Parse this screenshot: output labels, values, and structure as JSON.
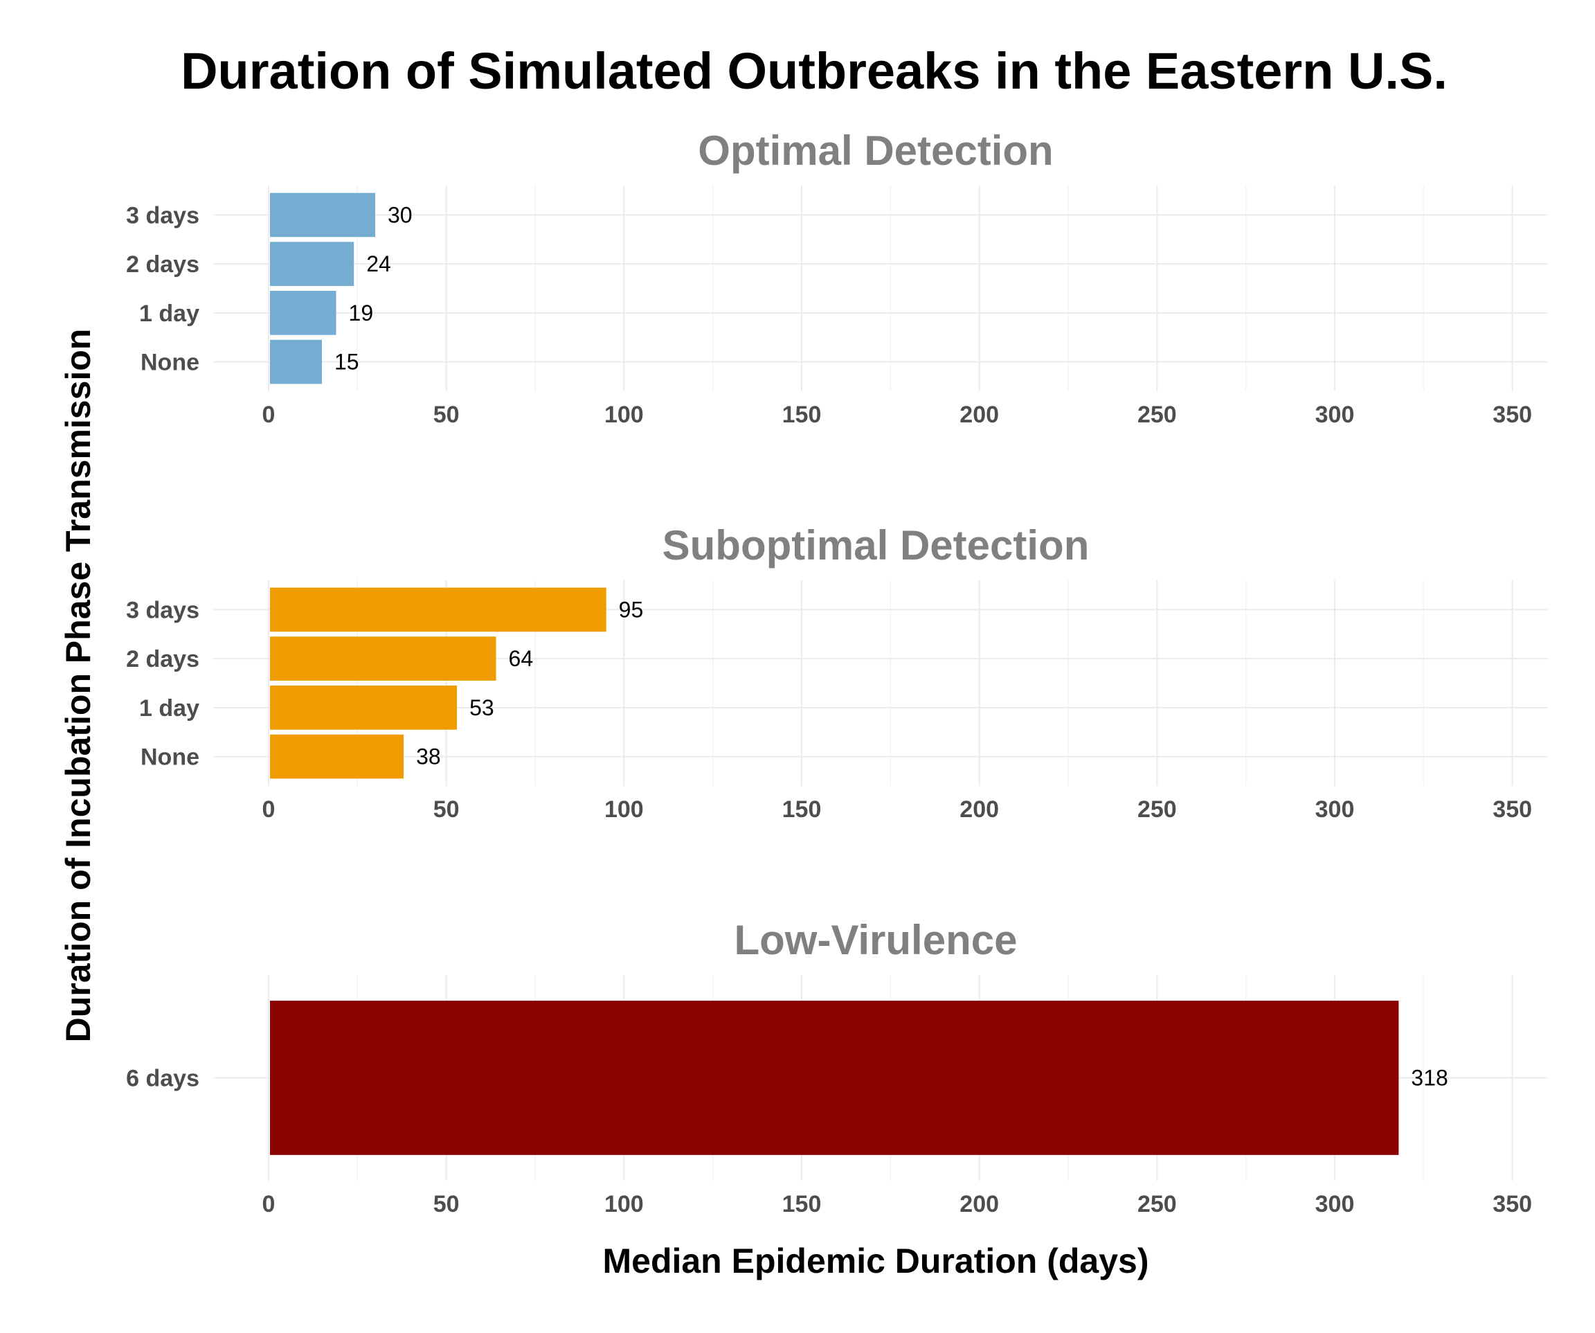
{
  "chart_data": {
    "type": "bar",
    "orientation": "horizontal",
    "title": "Duration of Simulated Outbreaks in the Eastern U.S.",
    "xlabel": "Median Epidemic Duration (days)",
    "ylabel": "Duration of Incubation Phase Transmission",
    "xlim": [
      0,
      360
    ],
    "x_ticks": [
      0,
      50,
      100,
      150,
      200,
      250,
      300,
      350
    ],
    "grid": true,
    "panels": [
      {
        "title": "Optimal Detection",
        "color": "#74add1",
        "categories": [
          "None",
          "1 day",
          "2 days",
          "3 days"
        ],
        "values": [
          15,
          19,
          24,
          30
        ]
      },
      {
        "title": "Suboptimal Detection",
        "color": "#f09b00",
        "categories": [
          "None",
          "1 day",
          "2 days",
          "3 days"
        ],
        "values": [
          38,
          53,
          64,
          95
        ]
      },
      {
        "title": "Low-Virulence",
        "color": "#8b0000",
        "categories": [
          "6 days"
        ],
        "values": [
          318
        ]
      }
    ]
  }
}
